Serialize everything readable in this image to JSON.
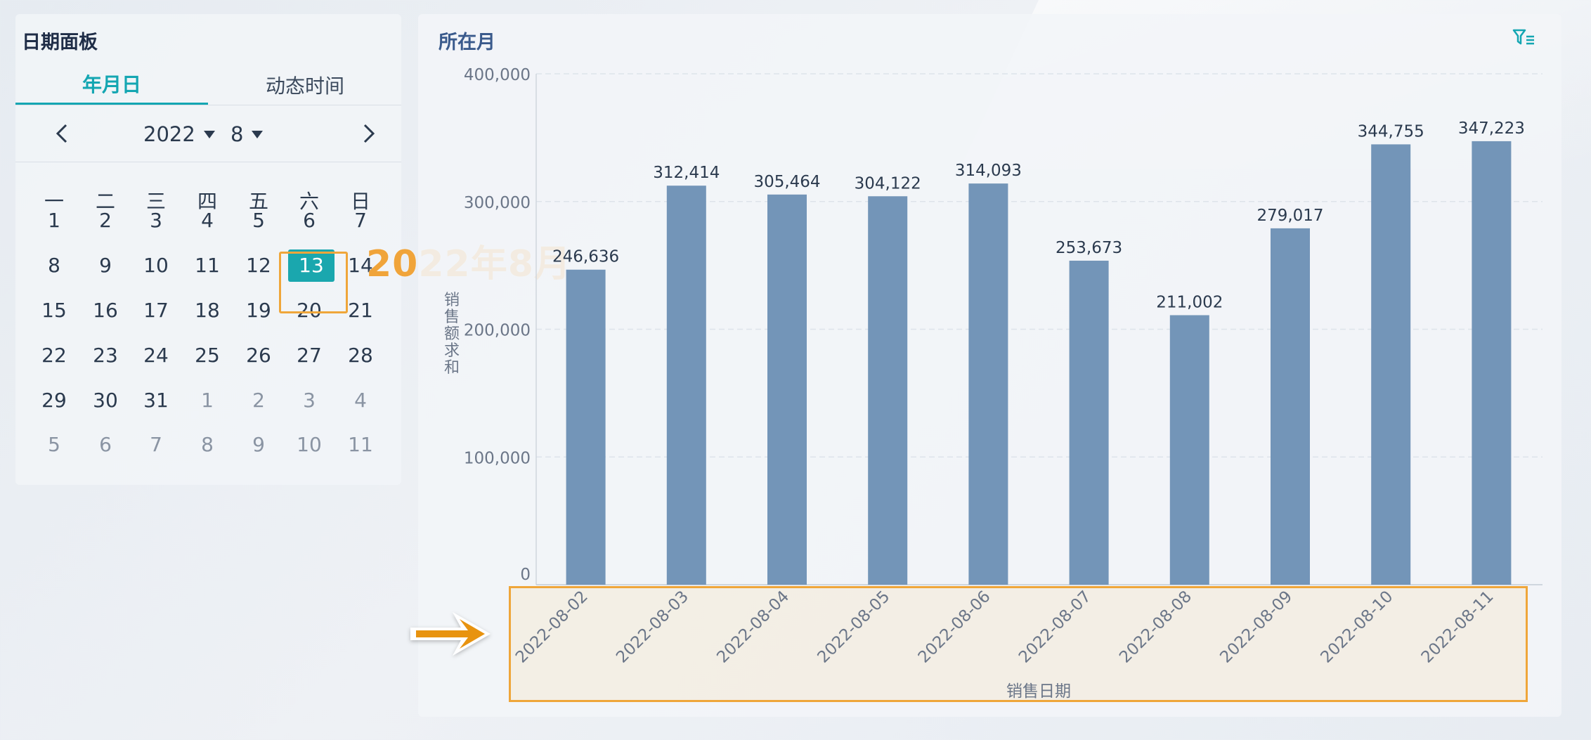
{
  "date_panel": {
    "title": "日期面板",
    "tabs": [
      "年月日",
      "动态时间"
    ],
    "year": "2022",
    "month": "8",
    "prev_icon": "chevron-left-icon",
    "next_icon": "chevron-right-icon",
    "weekdays": [
      "一",
      "二",
      "三",
      "四",
      "五",
      "六",
      "日"
    ],
    "weeks": [
      [
        "1",
        "2",
        "3",
        "4",
        "5",
        "6",
        "7"
      ],
      [
        "8",
        "9",
        "10",
        "11",
        "12",
        "13",
        "14"
      ],
      [
        "15",
        "16",
        "17",
        "18",
        "19",
        "20",
        "21"
      ],
      [
        "22",
        "23",
        "24",
        "25",
        "26",
        "27",
        "28"
      ],
      [
        "29",
        "30",
        "31",
        "1",
        "2",
        "3",
        "4"
      ],
      [
        "5",
        "6",
        "7",
        "8",
        "9",
        "10",
        "11"
      ]
    ],
    "selected_day": "13",
    "annotation": "2022年8月"
  },
  "chart_panel": {
    "title": "所在月",
    "filter_icon": "filter-icon",
    "arrow_icon": "arrow-right-icon"
  },
  "colors": {
    "accent": "#14a6b2",
    "bar": "#7395b8",
    "highlight": "#efa63a",
    "title": "#3a5a8c"
  },
  "chart_data": {
    "type": "bar",
    "categories": [
      "2022-08-02",
      "2022-08-03",
      "2022-08-04",
      "2022-08-05",
      "2022-08-06",
      "2022-08-07",
      "2022-08-08",
      "2022-08-09",
      "2022-08-10",
      "2022-08-11"
    ],
    "values": [
      246636,
      312414,
      305464,
      304122,
      314093,
      253673,
      211002,
      279017,
      344755,
      347223
    ],
    "data_labels": [
      "246,636",
      "312,414",
      "305,464",
      "304,122",
      "314,093",
      "253,673",
      "211,002",
      "279,017",
      "344,755",
      "347,223"
    ],
    "yticks": [
      "0",
      "100,000",
      "200,000",
      "300,000",
      "400,000"
    ],
    "ytick_values": [
      0,
      100000,
      200000,
      300000,
      400000
    ],
    "ylim": [
      0,
      400000
    ],
    "xlabel": "销售日期",
    "ylabel": "销售额求和",
    "grid": true
  }
}
